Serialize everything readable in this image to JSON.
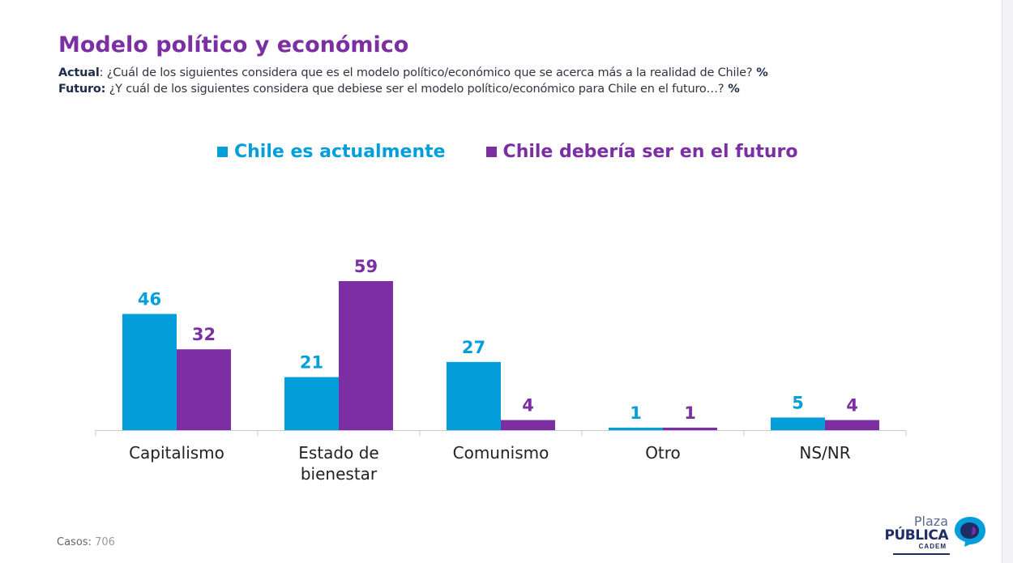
{
  "header": {
    "title": "Modelo político y económico",
    "q1_label": "Actual",
    "q1_text": ": ¿Cuál de los siguientes considera que es el modelo político/económico que se acerca más a la realidad de Chile?",
    "q1_suffix": " %",
    "q2_label": "Futuro:",
    "q2_text": " ¿Y cuál de los siguientes considera que debiese ser el modelo político/económico para Chile en el futuro…?",
    "q2_suffix": " %"
  },
  "colors": {
    "actual": "#049fdb",
    "futuro": "#7b2fa3",
    "axis": "#c8c8c8",
    "category_text": "#222222"
  },
  "chart_data": {
    "type": "bar",
    "title": "",
    "xlabel": "",
    "ylabel": "",
    "ylim": [
      0,
      59
    ],
    "legend_position": "top",
    "categories": [
      [
        "Capitalismo"
      ],
      [
        "Estado de",
        "bienestar"
      ],
      [
        "Comunismo"
      ],
      [
        "Otro"
      ],
      [
        "NS/NR"
      ]
    ],
    "series": [
      {
        "name": "Chile es actualmente",
        "values": [
          46,
          21,
          27,
          1,
          5
        ]
      },
      {
        "name": "Chile debería ser en el futuro",
        "values": [
          32,
          59,
          4,
          1,
          4
        ]
      }
    ]
  },
  "footer": {
    "casos_label": "Casos",
    "casos_sep": ": ",
    "casos_value": "706"
  },
  "logo": {
    "line1": "Plaza",
    "line2": "PÚBLICA",
    "line3": "CADEM"
  }
}
